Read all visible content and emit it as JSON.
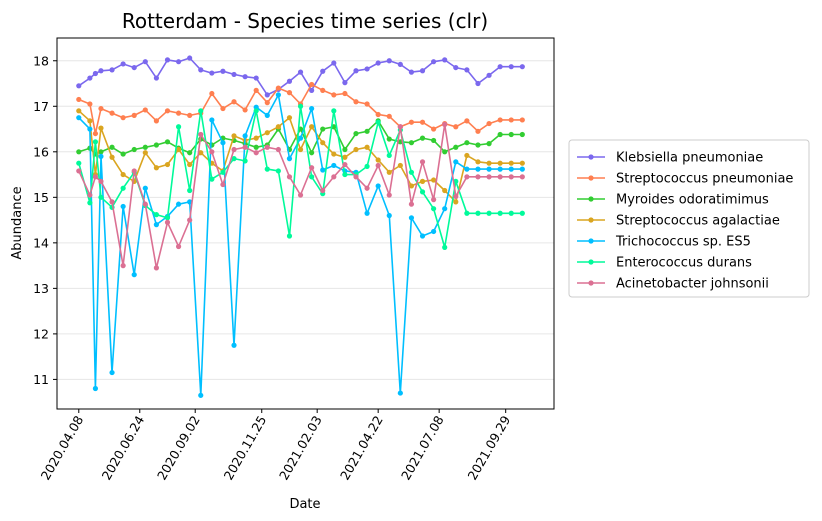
{
  "chart_data": {
    "type": "line",
    "title": "Rotterdam - Species time series (clr)",
    "xlabel": "Date",
    "ylabel": "Abundance",
    "x_tick_labels": [
      "2020.04.08",
      "2020.06.24",
      "2020.09.02",
      "2020.11.25",
      "2021.02.03",
      "2021.04.22",
      "2021.07.08",
      "2021.09.29"
    ],
    "x_ticks_days": [
      0,
      77,
      147,
      231,
      301,
      378,
      455,
      539
    ],
    "y_ticks": [
      11,
      12,
      13,
      14,
      15,
      16,
      17,
      18
    ],
    "ylim": [
      10.35,
      18.5
    ],
    "xlim": [
      -27.5,
      600
    ],
    "grid": "horizontal",
    "legend_placement": "right-outside",
    "x_days": [
      0,
      14,
      21,
      28,
      42,
      56,
      70,
      84,
      98,
      112,
      126,
      140,
      154,
      168,
      182,
      196,
      210,
      224,
      238,
      252,
      266,
      280,
      294,
      308,
      322,
      336,
      350,
      364,
      378,
      392,
      406,
      420,
      434,
      448,
      462,
      476,
      490,
      504,
      518,
      532,
      546,
      560
    ],
    "series": [
      {
        "name": "Klebsiella pneumoniae",
        "color": "#7b68ee",
        "values": [
          17.45,
          17.62,
          17.72,
          17.78,
          17.8,
          17.93,
          17.85,
          17.98,
          17.62,
          18.02,
          17.98,
          18.06,
          17.8,
          17.73,
          17.77,
          17.7,
          17.65,
          17.62,
          17.25,
          17.37,
          17.55,
          17.75,
          17.35,
          17.77,
          17.95,
          17.52,
          17.78,
          17.82,
          17.95,
          18.0,
          17.92,
          17.75,
          17.78,
          17.98,
          18.02,
          17.85,
          17.8,
          17.5,
          17.68,
          17.87,
          17.87,
          17.87
        ]
      },
      {
        "name": "Streptococcus pneumoniae",
        "color": "#ff7f50",
        "values": [
          17.15,
          17.05,
          16.4,
          16.95,
          16.85,
          16.75,
          16.8,
          16.92,
          16.68,
          16.9,
          16.85,
          16.8,
          16.85,
          17.28,
          16.95,
          17.1,
          16.92,
          17.35,
          17.08,
          17.4,
          17.3,
          17.05,
          17.48,
          17.35,
          17.25,
          17.28,
          17.1,
          17.05,
          16.82,
          16.78,
          16.55,
          16.65,
          16.65,
          16.5,
          16.62,
          16.55,
          16.68,
          16.45,
          16.62,
          16.7,
          16.7,
          16.7
        ]
      },
      {
        "name": "Myroides odoratimimus",
        "color": "#32cd32",
        "values": [
          16.0,
          16.08,
          15.95,
          16.0,
          16.1,
          15.95,
          16.05,
          16.1,
          16.15,
          16.22,
          16.08,
          15.98,
          16.28,
          16.15,
          16.3,
          16.25,
          16.18,
          16.1,
          16.15,
          16.5,
          16.05,
          16.5,
          15.98,
          16.5,
          16.55,
          16.05,
          16.4,
          16.45,
          16.68,
          16.28,
          16.22,
          16.2,
          16.3,
          16.25,
          16.0,
          16.1,
          16.2,
          16.15,
          16.18,
          16.38,
          16.38,
          16.38
        ]
      },
      {
        "name": "Streptococcus agalactiae",
        "color": "#daa520",
        "values": [
          16.9,
          16.68,
          15.5,
          16.52,
          15.88,
          15.5,
          15.35,
          15.98,
          15.65,
          15.72,
          16.05,
          15.72,
          15.98,
          15.75,
          15.58,
          16.35,
          16.25,
          16.3,
          16.42,
          16.55,
          16.75,
          16.05,
          16.55,
          16.2,
          15.95,
          15.88,
          16.05,
          16.1,
          15.82,
          15.55,
          15.7,
          15.25,
          15.35,
          15.38,
          15.15,
          14.9,
          15.92,
          15.78,
          15.75,
          15.75,
          15.75,
          15.75
        ]
      },
      {
        "name": "Trichococcus sp. ES5",
        "color": "#00bfff",
        "values": [
          16.75,
          16.5,
          10.8,
          15.9,
          11.15,
          14.8,
          13.3,
          15.2,
          14.4,
          14.58,
          14.85,
          14.9,
          10.65,
          16.7,
          16.2,
          11.75,
          16.35,
          16.98,
          16.8,
          17.25,
          15.85,
          16.3,
          16.95,
          15.6,
          15.7,
          15.58,
          15.55,
          14.65,
          15.25,
          14.6,
          10.7,
          14.55,
          14.15,
          14.25,
          14.75,
          15.78,
          15.62,
          15.62,
          15.62,
          15.62,
          15.62,
          15.62
        ]
      },
      {
        "name": "Enterococcus durans",
        "color": "#00fa9a",
        "values": [
          15.75,
          14.88,
          16.22,
          15.0,
          14.78,
          15.2,
          15.55,
          14.82,
          14.62,
          14.55,
          16.55,
          15.15,
          16.9,
          15.4,
          15.55,
          15.85,
          15.8,
          16.9,
          15.62,
          15.58,
          14.15,
          17.0,
          15.45,
          15.08,
          16.9,
          15.5,
          15.5,
          15.68,
          16.65,
          15.92,
          16.48,
          15.55,
          15.12,
          14.75,
          13.9,
          15.35,
          14.65,
          14.65,
          14.65,
          14.65,
          14.65,
          14.65
        ]
      },
      {
        "name": "Acinetobacter johnsonii",
        "color": "#db7093",
        "values": [
          15.58,
          15.05,
          15.45,
          15.35,
          14.9,
          13.5,
          15.58,
          14.85,
          13.45,
          14.45,
          13.92,
          14.5,
          16.38,
          16.0,
          15.28,
          16.05,
          16.1,
          15.98,
          16.1,
          16.05,
          15.45,
          15.05,
          15.65,
          15.15,
          15.45,
          15.72,
          15.45,
          15.2,
          15.7,
          15.05,
          16.55,
          14.85,
          15.78,
          14.95,
          16.6,
          15.02,
          15.45,
          15.45,
          15.45,
          15.45,
          15.45,
          15.45
        ]
      }
    ]
  }
}
